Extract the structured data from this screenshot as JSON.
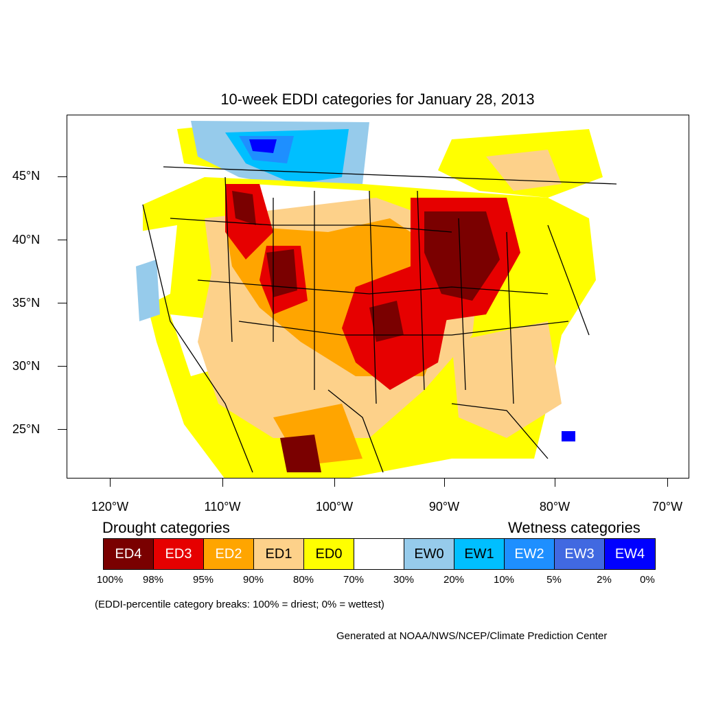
{
  "title": "10-week EDDI categories for January 28, 2013",
  "lat_labels": [
    "45°N",
    "40°N",
    "35°N",
    "30°N",
    "25°N"
  ],
  "lon_labels": [
    "120°W",
    "110°W",
    "100°W",
    "90°W",
    "80°W",
    "70°W"
  ],
  "legend": {
    "drought_title": "Drought categories",
    "wetness_title": "Wetness categories",
    "categories": [
      {
        "label": "ED4",
        "color": "#7a0000",
        "text_color": "#ffffff"
      },
      {
        "label": "ED3",
        "color": "#e60000",
        "text_color": "#ffffff"
      },
      {
        "label": "ED2",
        "color": "#ffa500",
        "text_color": "#ffffff"
      },
      {
        "label": "ED1",
        "color": "#fdd18a",
        "text_color": "#000000"
      },
      {
        "label": "ED0",
        "color": "#ffff00",
        "text_color": "#000000"
      },
      {
        "label": "",
        "color": "#ffffff",
        "text_color": "#000000"
      },
      {
        "label": "EW0",
        "color": "#96cbeb",
        "text_color": "#000000"
      },
      {
        "label": "EW1",
        "color": "#00bfff",
        "text_color": "#000000"
      },
      {
        "label": "EW2",
        "color": "#1e8fff",
        "text_color": "#ffffff"
      },
      {
        "label": "EW3",
        "color": "#4169e1",
        "text_color": "#ffffff"
      },
      {
        "label": "EW4",
        "color": "#0000ff",
        "text_color": "#ffffff"
      }
    ],
    "percent_breaks": [
      "100%",
      "98%",
      "95%",
      "90%",
      "80%",
      "70%",
      "30%",
      "20%",
      "10%",
      "5%",
      "2%",
      "0%"
    ]
  },
  "note": "(EDDI-percentile category breaks: 100% = driest; 0% = wettest)",
  "credit": "Generated at NOAA/NWS/NCEP/Climate Prediction Center"
}
